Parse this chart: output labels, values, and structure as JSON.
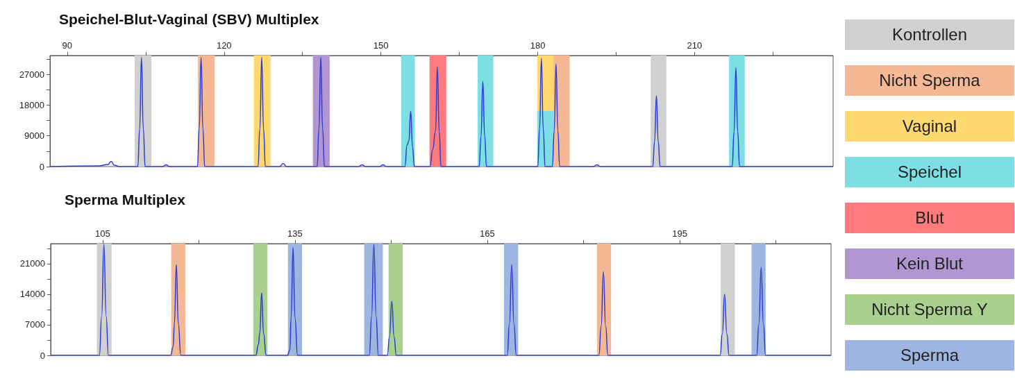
{
  "chart_data": [
    {
      "type": "line",
      "title": "Speichel-Blut-Vaginal (SBV) Multiplex",
      "grid": false,
      "marker": "none",
      "line_style": "solid",
      "xlim": [
        86.7,
        236.5
      ],
      "xticks": [
        90,
        {
          "value": 105,
          "label": null
        },
        120,
        {
          "value": 135,
          "label": null
        },
        150,
        {
          "value": 165,
          "label": null
        },
        180,
        {
          "value": 195,
          "label": null
        },
        210,
        {
          "value": 225,
          "label": null
        }
      ],
      "ylim": [
        0,
        32500
      ],
      "yticks": [
        0,
        {
          "value": 4500,
          "label": null
        },
        9000,
        {
          "value": 13500,
          "label": null
        },
        18000,
        {
          "value": 22500,
          "label": null
        },
        27000,
        {
          "value": 31500,
          "label": null
        }
      ],
      "series": [
        {
          "color": "#2b3bd6",
          "x": [
            86.7,
            96,
            97.8,
            98.4,
            99,
            100,
            103.5,
            103.85,
            104.2,
            104.55,
            104.9,
            108.2,
            108.9,
            109.6,
            114.9,
            115.25,
            115.6,
            115.95,
            116.3,
            126.5,
            126.85,
            127.2,
            127.55,
            127.9,
            130.6,
            131.3,
            132,
            137.8,
            138.15,
            138.5,
            138.85,
            139.2,
            145.7,
            146.4,
            147.1,
            149.7,
            150.4,
            151.1,
            154.6,
            155.0,
            155.35,
            155.7,
            156.05,
            156.4,
            159.4,
            159.9,
            160.45,
            160.8,
            161.15,
            161.5,
            168.8,
            169.15,
            169.5,
            169.85,
            170.2,
            180.0,
            180.35,
            180.7,
            181.05,
            181.4,
            182.8,
            183.15,
            183.5,
            183.85,
            184.2,
            190.6,
            191.3,
            192,
            202.0,
            202.35,
            202.7,
            203.05,
            203.4,
            217.2,
            217.55,
            217.9,
            218.25,
            218.6,
            236.5
          ],
          "values": [
            0,
            200,
            600,
            1500,
            400,
            0,
            0,
            11000,
            32000,
            11000,
            0,
            0,
            500,
            0,
            0,
            11000,
            32000,
            11000,
            0,
            0,
            11000,
            32000,
            11000,
            0,
            0,
            900,
            0,
            0,
            11000,
            32000,
            11000,
            0,
            0,
            500,
            0,
            0,
            500,
            0,
            0,
            6300,
            7500,
            16200,
            5700,
            0,
            0,
            5000,
            10300,
            29200,
            10300,
            0,
            0,
            8800,
            25000,
            8800,
            0,
            0,
            11000,
            31700,
            11000,
            0,
            0,
            10500,
            30000,
            10500,
            0,
            0,
            500,
            0,
            0,
            7300,
            20700,
            7300,
            0,
            0,
            10200,
            29000,
            10200,
            0,
            0
          ]
        }
      ],
      "bands": [
        {
          "axis": "x",
          "from": 102.9,
          "to": 106.1,
          "color": "#d0d0d0"
        },
        {
          "axis": "x",
          "from": 115.0,
          "to": 118.2,
          "color": "#f4b994"
        },
        {
          "axis": "x",
          "from": 125.7,
          "to": 128.9,
          "color": "#ffd970"
        },
        {
          "axis": "x",
          "from": 137.0,
          "to": 140.2,
          "color": "#b196d2"
        },
        {
          "axis": "x",
          "from": 153.9,
          "to": 156.5,
          "color": "#7ddfe3"
        },
        {
          "axis": "x",
          "from": 159.3,
          "to": 162.5,
          "color": "#ff7b7b"
        },
        {
          "axis": "x",
          "from": 168.5,
          "to": 171.5,
          "color": "#7ddfe3"
        },
        {
          "axis": "x",
          "from": 179.9,
          "to": 183.0,
          "color": "#ffd970"
        },
        {
          "axis": "x",
          "from": 179.9,
          "to": 183.0,
          "color": "#7ddfe3"
        },
        {
          "axis": "x",
          "from": 183.0,
          "to": 186.1,
          "color": "#f4b994"
        },
        {
          "axis": "x",
          "from": 201.6,
          "to": 204.6,
          "color": "#d0d0d0"
        },
        {
          "axis": "x",
          "from": 216.6,
          "to": 219.6,
          "color": "#7ddfe3"
        }
      ]
    },
    {
      "type": "line",
      "title": "Sperma Multiplex",
      "grid": false,
      "marker": "none",
      "line_style": "solid",
      "xlim": [
        96.9,
        218.6
      ],
      "xticks": [
        105,
        {
          "value": 120,
          "label": null
        },
        135,
        {
          "value": 150,
          "label": null
        },
        165,
        {
          "value": 180,
          "label": null
        },
        195,
        {
          "value": 210,
          "label": null
        }
      ],
      "ylim": [
        0,
        25600
      ],
      "yticks": [
        0,
        {
          "value": 3500,
          "label": null
        },
        7000,
        {
          "value": 10500,
          "label": null
        },
        14000,
        {
          "value": 17500,
          "label": null
        },
        21000,
        {
          "value": 24500,
          "label": null
        }
      ],
      "series": [
        {
          "color": "#2b3bd6",
          "x": [
            96.9,
            104.5,
            104.85,
            105.2,
            105.55,
            105.9,
            115.6,
            116.0,
            116.2,
            116.5,
            116.8,
            117.2,
            128.9,
            129.3,
            129.5,
            129.8,
            130.1,
            130.5,
            133.8,
            134.2,
            134.4,
            134.7,
            135.0,
            135.4,
            146.6,
            146.95,
            147.3,
            147.65,
            148.0,
            149.4,
            149.75,
            150.1,
            150.45,
            150.8,
            168.1,
            168.45,
            168.8,
            169.15,
            169.5,
            182.4,
            182.75,
            183.1,
            183.45,
            183.8,
            201.3,
            201.65,
            202.0,
            202.35,
            202.7,
            207.0,
            207.35,
            207.7,
            208.05,
            208.4,
            218.6
          ],
          "values": [
            0,
            0,
            8900,
            25500,
            8900,
            0,
            0,
            2000,
            7300,
            20800,
            7300,
            0,
            0,
            2500,
            5000,
            14300,
            5000,
            0,
            0,
            1200,
            8600,
            24700,
            8600,
            0,
            0,
            8900,
            25500,
            8900,
            0,
            0,
            4300,
            12400,
            4300,
            0,
            0,
            7300,
            20800,
            7300,
            0,
            0,
            6700,
            19200,
            6700,
            0,
            0,
            4900,
            14000,
            4900,
            0,
            0,
            7100,
            20200,
            7100,
            0,
            0
          ]
        }
      ],
      "bands": [
        {
          "axis": "x",
          "from": 104.1,
          "to": 106.4,
          "color": "#d0d0d0"
        },
        {
          "axis": "x",
          "from": 115.7,
          "to": 117.9,
          "color": "#f4b994"
        },
        {
          "axis": "x",
          "from": 128.5,
          "to": 130.7,
          "color": "#a9d08e"
        },
        {
          "axis": "x",
          "from": 133.9,
          "to": 136.1,
          "color": "#9db5e0"
        },
        {
          "axis": "x",
          "from": 145.8,
          "to": 148.7,
          "color": "#9db5e0"
        },
        {
          "axis": "x",
          "from": 149.6,
          "to": 151.8,
          "color": "#a9d08e"
        },
        {
          "axis": "x",
          "from": 167.6,
          "to": 169.8,
          "color": "#9db5e0"
        },
        {
          "axis": "x",
          "from": 182.1,
          "to": 184.3,
          "color": "#f4b994"
        },
        {
          "axis": "x",
          "from": 201.4,
          "to": 203.6,
          "color": "#d0d0d0"
        },
        {
          "axis": "x",
          "from": 206.2,
          "to": 208.4,
          "color": "#9db5e0"
        }
      ]
    },
    {
      "type": "other",
      "categories": [
        "Kontrollen",
        "Nicht Sperma",
        "Vaginal",
        "Speichel",
        "Blut",
        "Kein Blut",
        "Nicht Sperma Y",
        "Sperma"
      ],
      "colors": [
        "#d0d0d0",
        "#f4b994",
        "#ffd970",
        "#7ddfe3",
        "#ff7b7b",
        "#b196d2",
        "#a9d08e",
        "#9db5e0"
      ]
    }
  ]
}
